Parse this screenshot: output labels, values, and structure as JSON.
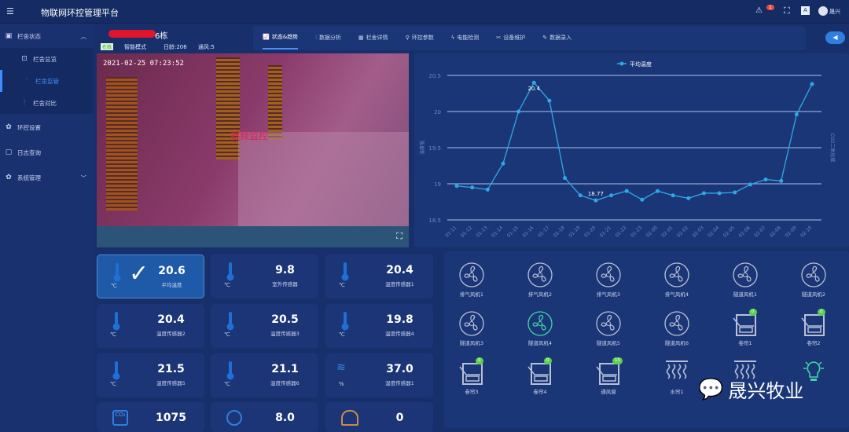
{
  "app": {
    "title": "物联网环控管理平台",
    "user": "晟兴",
    "notification_count": "1"
  },
  "sidebar": {
    "items": [
      {
        "label": "栏舍状态",
        "icon": "monitor-icon",
        "expanded": true,
        "children": [
          {
            "label": "栏舍总览"
          },
          {
            "label": "栏舍监管",
            "active": true
          },
          {
            "label": "栏舍对比"
          }
        ]
      },
      {
        "label": "环控设置",
        "icon": "gear-icon"
      },
      {
        "label": "日志查询",
        "icon": "log-icon"
      },
      {
        "label": "系统管理",
        "icon": "gear-icon"
      }
    ]
  },
  "house": {
    "name": "6栋",
    "status": "在线",
    "mode": "智能模式",
    "age": "日龄:206",
    "ventilation": "通风:5"
  },
  "tabs": [
    {
      "label": "状态&趋势",
      "icon": "chart-icon",
      "active": true
    },
    {
      "label": "数据分析",
      "icon": "analysis-icon"
    },
    {
      "label": "栏舍详情",
      "icon": "grid-icon"
    },
    {
      "label": "环控参数",
      "icon": "search-icon"
    },
    {
      "label": "电能检测",
      "icon": "bolt-icon"
    },
    {
      "label": "设备维护",
      "icon": "wrench-icon"
    },
    {
      "label": "数据录入",
      "icon": "edit-icon"
    }
  ],
  "video": {
    "timestamp": "2021-02-25  07:23:52",
    "overlay": "视频监控"
  },
  "chart_data": {
    "type": "line",
    "legend": "平均温度",
    "legend_position": "top-center",
    "ylim": [
      18.5,
      20.5
    ],
    "yticks": [
      18.5,
      19,
      19.5,
      20,
      20.5
    ],
    "ylabel": "温度值",
    "y2label": "CO2二氧化碳",
    "grid": true,
    "x": [
      "01-11",
      "01-12",
      "01-13",
      "01-14",
      "01-15",
      "01-16",
      "01-17",
      "01-18",
      "01-19",
      "01-20",
      "01-21",
      "01-22",
      "01-23",
      "02-00",
      "02-01",
      "02-02",
      "02-03",
      "02-04",
      "02-05",
      "02-06",
      "02-07",
      "02-08",
      "02-09",
      "02-10"
    ],
    "series": [
      {
        "name": "平均温度",
        "color": "#2fa8e6",
        "values": [
          18.97,
          18.95,
          18.92,
          19.28,
          20.0,
          20.4,
          20.15,
          19.08,
          18.84,
          18.77,
          18.84,
          18.9,
          18.78,
          18.9,
          18.84,
          18.8,
          18.87,
          18.87,
          18.88,
          18.99,
          19.06,
          19.04,
          19.96,
          20.38
        ]
      }
    ],
    "annotations": [
      {
        "x": "01-16",
        "label": "20.4"
      },
      {
        "x": "01-20",
        "label": "18.77"
      }
    ]
  },
  "sensors": [
    {
      "value": "20.6",
      "label": "平均温度",
      "unit": "℃",
      "icon": "thermometer-icon",
      "selected": true
    },
    {
      "value": "9.8",
      "label": "室外传感器",
      "unit": "℃",
      "icon": "thermometer-icon"
    },
    {
      "value": "20.4",
      "label": "温度传感器1",
      "unit": "℃",
      "icon": "thermometer-icon"
    },
    {
      "value": "20.4",
      "label": "温度传感器2",
      "unit": "℃",
      "icon": "thermometer-icon"
    },
    {
      "value": "20.5",
      "label": "温度传感器3",
      "unit": "℃",
      "icon": "thermometer-icon"
    },
    {
      "value": "19.8",
      "label": "温度传感器4",
      "unit": "℃",
      "icon": "thermometer-icon"
    },
    {
      "value": "21.5",
      "label": "温度传感器5",
      "unit": "℃",
      "icon": "thermometer-icon"
    },
    {
      "value": "21.1",
      "label": "温度传感器6",
      "unit": "℃",
      "icon": "thermometer-icon"
    },
    {
      "value": "37.0",
      "label": "湿度传感器1",
      "unit": "%",
      "icon": "humidity-icon"
    },
    {
      "value": "1075",
      "label": "",
      "unit": "",
      "icon": "co2-icon"
    },
    {
      "value": "8.0",
      "label": "",
      "unit": "",
      "icon": "pressure-gauge-icon"
    },
    {
      "value": "0",
      "label": "",
      "unit": "",
      "icon": "scale-icon"
    }
  ],
  "devices": [
    {
      "label": "排气风机1",
      "type": "fan"
    },
    {
      "label": "排气风机2",
      "type": "fan"
    },
    {
      "label": "排气风机3",
      "type": "fan"
    },
    {
      "label": "排气风机4",
      "type": "fan"
    },
    {
      "label": "隧道风机1",
      "type": "fan"
    },
    {
      "label": "隧道风机2",
      "type": "fan"
    },
    {
      "label": "隧道风机3",
      "type": "fan"
    },
    {
      "label": "隧道风机4",
      "type": "fan",
      "on": true
    },
    {
      "label": "隧道风机5",
      "type": "fan"
    },
    {
      "label": "隧道风机6",
      "type": "fan"
    },
    {
      "label": "卷帘1",
      "type": "curtain",
      "badge": "0"
    },
    {
      "label": "卷帘2",
      "type": "curtain",
      "badge": "0"
    },
    {
      "label": "卷帘3",
      "type": "curtain",
      "badge": "0"
    },
    {
      "label": "卷帘4",
      "type": "curtain",
      "badge": "0"
    },
    {
      "label": "通风窗",
      "type": "curtain",
      "badge": "15"
    },
    {
      "label": "水帘1",
      "type": "water"
    },
    {
      "label": "",
      "type": "water"
    },
    {
      "label": "",
      "type": "light",
      "on": true
    }
  ],
  "watermark": "晟兴牧业"
}
